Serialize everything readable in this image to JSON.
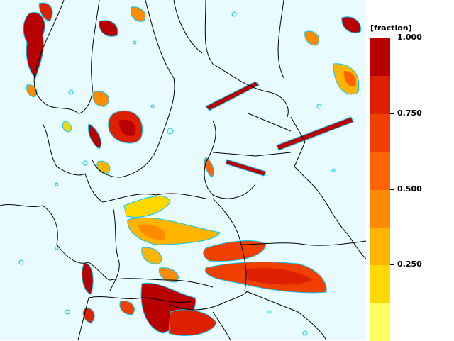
{
  "legend": {
    "unit_label": "[fraction]",
    "ticks": [
      {
        "label": "1.000",
        "value": 1.0
      },
      {
        "label": "0.750",
        "value": 0.75
      },
      {
        "label": "0.500",
        "value": 0.5
      },
      {
        "label": "0.250",
        "value": 0.25
      }
    ],
    "bands": [
      {
        "color": "#b80000"
      },
      {
        "color": "#dc2000"
      },
      {
        "color": "#f04000"
      },
      {
        "color": "#ff6400"
      },
      {
        "color": "#ff8c00"
      },
      {
        "color": "#ffb400"
      },
      {
        "color": "#ffd800"
      },
      {
        "color": "#ffff60"
      }
    ]
  },
  "map": {
    "background_color": "#e8fcff",
    "border_color": "#000000",
    "contour_color": "#00c8ff"
  }
}
